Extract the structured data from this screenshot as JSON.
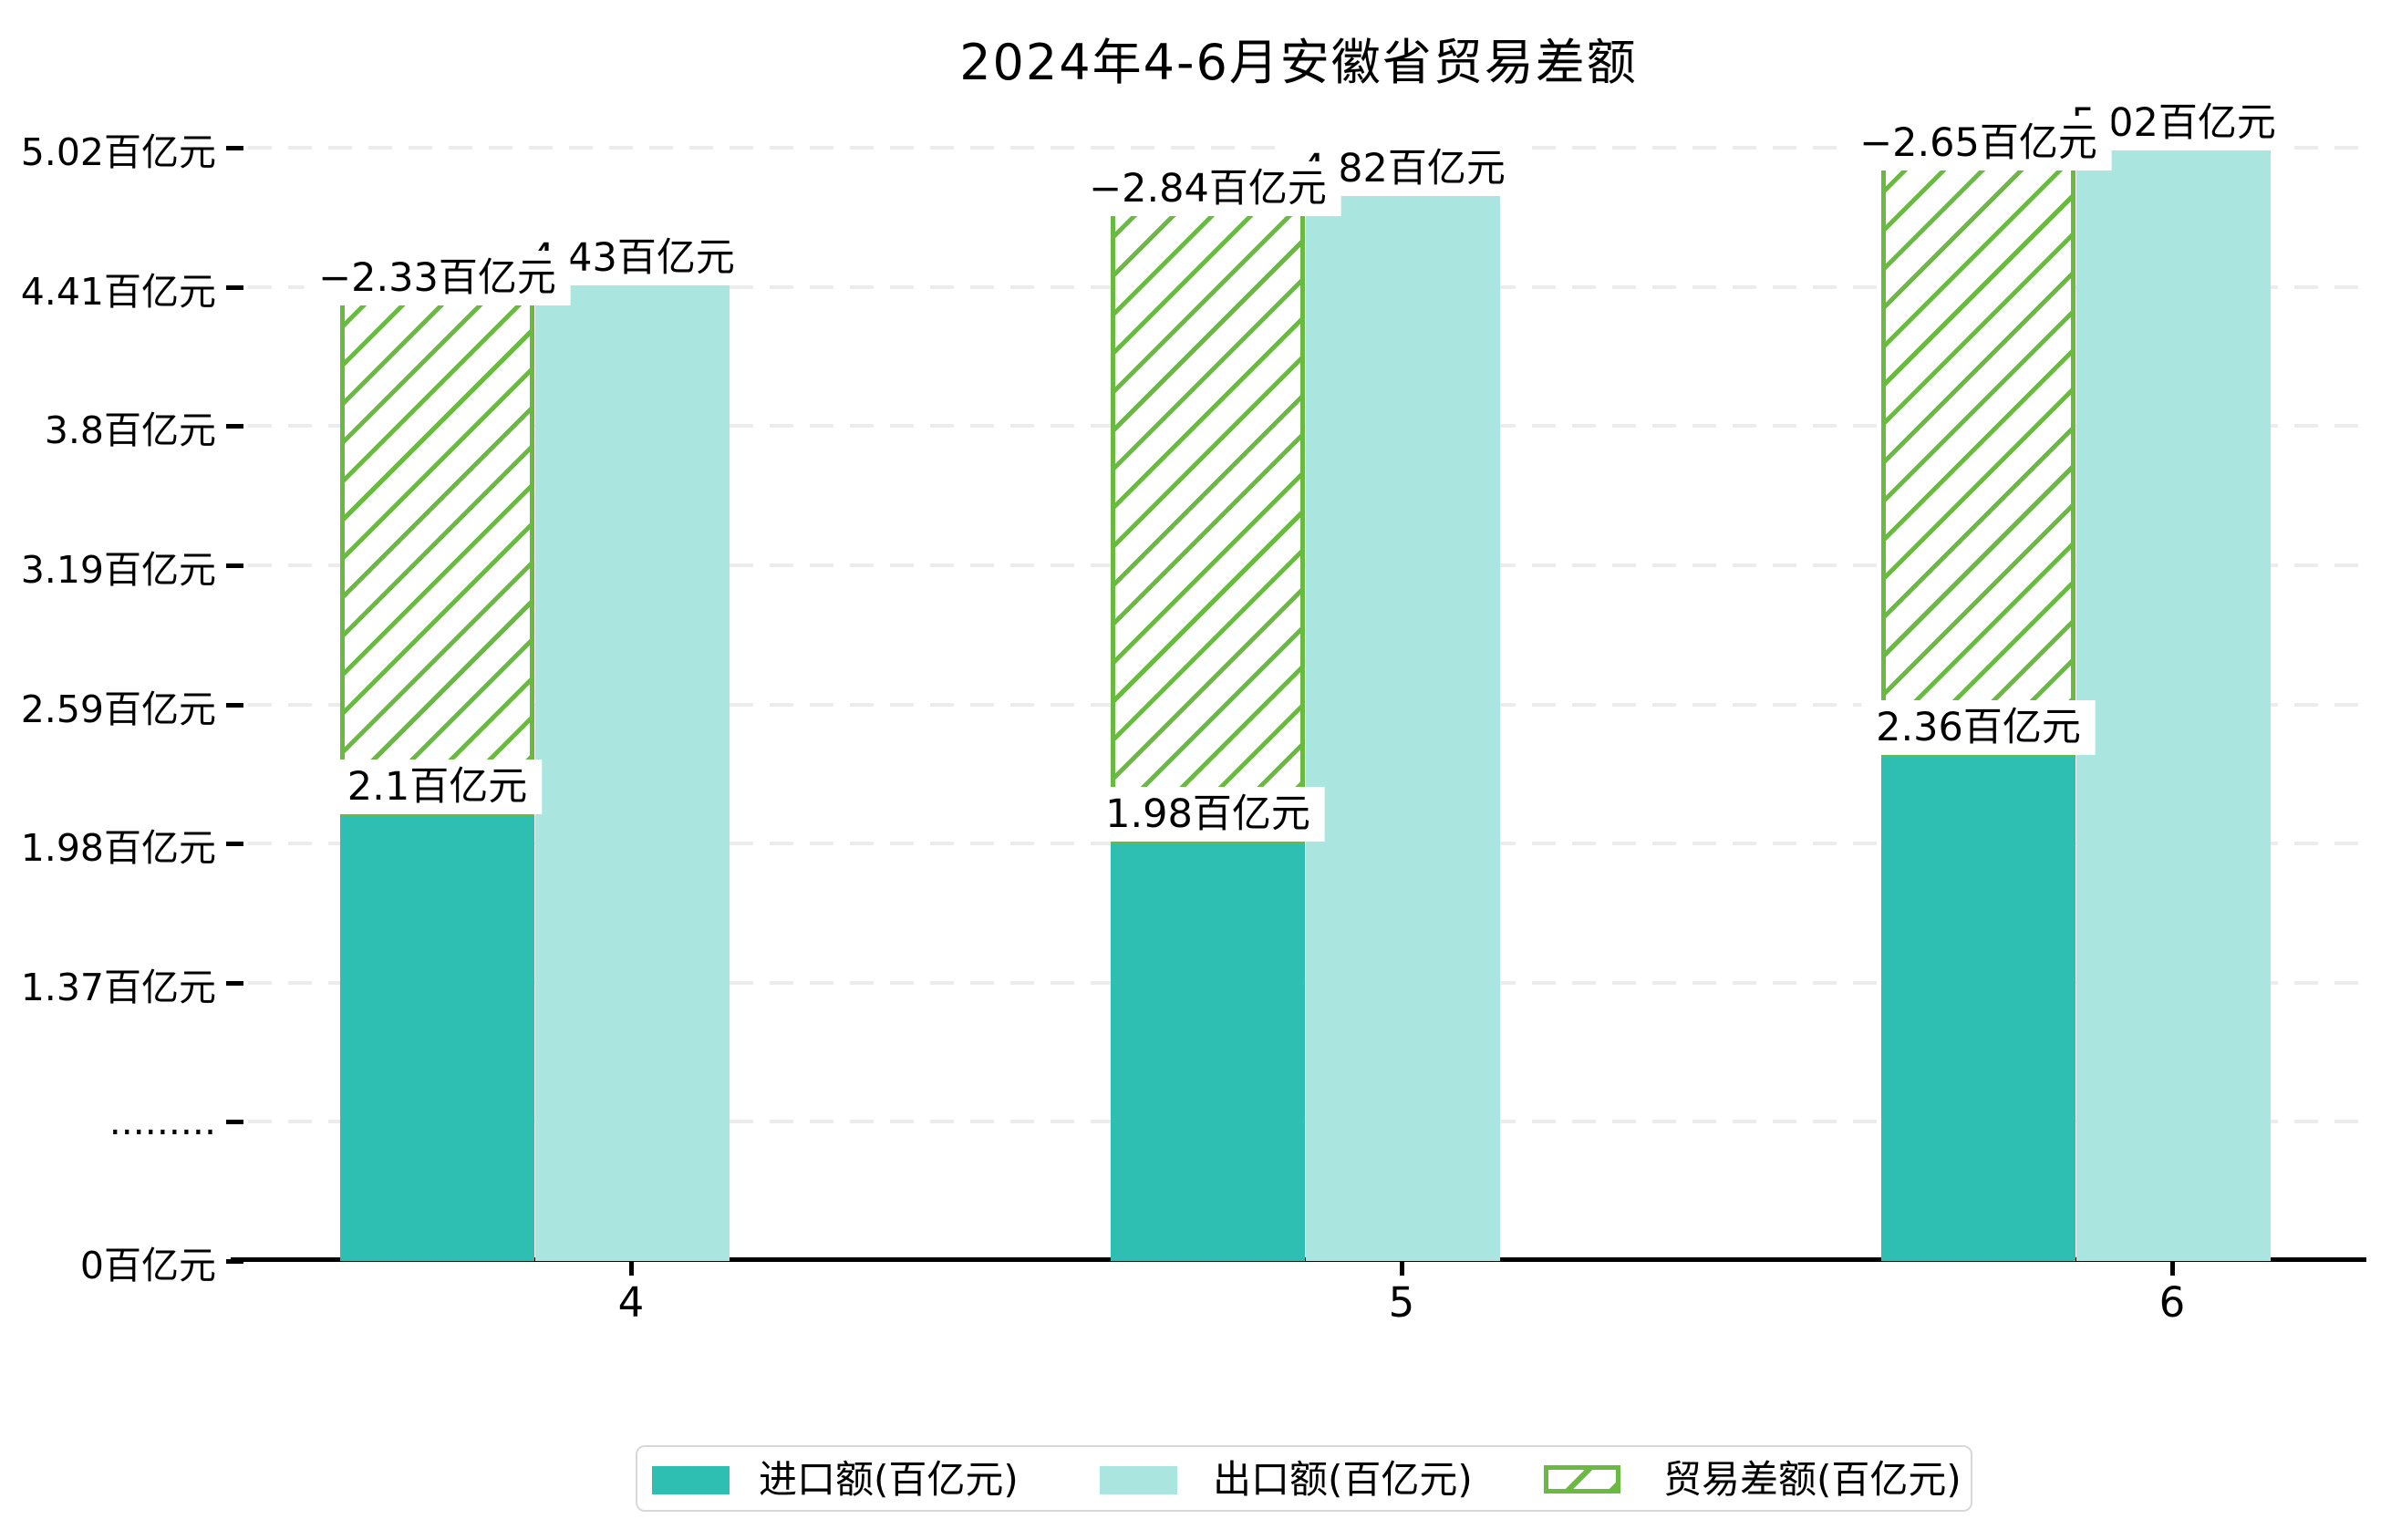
{
  "title": "2024年4-6月安徽省贸易差额",
  "colors": {
    "import_bar": "#2FBFB2",
    "export_bar": "#AAE6DF",
    "balance_hatch": "#6ABA42",
    "gridline": "#ECECEC",
    "axis": "#000000",
    "label_background": "#FFFFFF",
    "legend_border": "#D8D8D8"
  },
  "chart_data": {
    "type": "bar",
    "title": "2024年4-6月安徽省贸易差额",
    "categories": [
      "4",
      "5",
      "6"
    ],
    "series": [
      {
        "name": "进口额(百亿元)",
        "values": [
          2.1,
          1.98,
          2.36
        ],
        "labels": [
          "2.1百亿元",
          "1.98百亿元",
          "2.36百亿元"
        ]
      },
      {
        "name": "出口额(百亿元)",
        "values": [
          4.43,
          4.82,
          5.02
        ],
        "labels": [
          "4.43百亿元",
          "4.82百亿元",
          "5.02百亿元"
        ]
      },
      {
        "name": "贸易差额(百亿元)",
        "values": [
          -2.33,
          -2.84,
          -2.65
        ],
        "labels": [
          "−2.33百亿元",
          "−2.84百亿元",
          "−2.65百亿元"
        ]
      }
    ],
    "y_axis": {
      "tick_labels": [
        "5.02百亿元",
        "4.41百亿元",
        "3.8百亿元",
        "3.19百亿元",
        "2.59百亿元",
        "1.98百亿元",
        "1.37百亿元",
        ".........",
        "0百亿元"
      ],
      "masked_tick_index": 7,
      "ylim_labels": [
        "0百亿元",
        "5.02百亿元"
      ]
    },
    "x_axis": {
      "tick_labels": [
        "4",
        "5",
        "6"
      ]
    },
    "grid": true,
    "legend_position": "bottom"
  },
  "legend": {
    "items": [
      {
        "label": "进口额(百亿元)",
        "swatch": "import-solid-swatch"
      },
      {
        "label": "出口额(百亿元)",
        "swatch": "export-solid-swatch"
      },
      {
        "label": "贸易差额(百亿元)",
        "swatch": "balance-hatch-swatch"
      }
    ]
  }
}
